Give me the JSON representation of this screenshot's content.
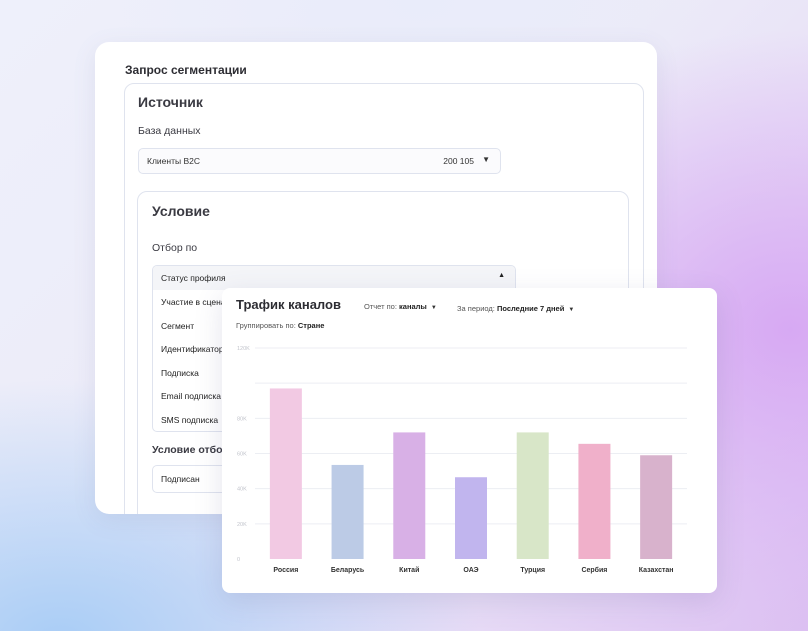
{
  "segmentation": {
    "title": "Запрос сегментации",
    "source_heading": "Источник",
    "database_label": "База данных",
    "database_value": "Клиенты B2C",
    "database_count": "200 105",
    "condition_heading": "Условие",
    "filter_label": "Отбор по",
    "filter_selected": "Статус профиля",
    "filter_options": [
      "Участие в сцена",
      "Сегмент",
      "Идентификатор",
      "Подписка",
      "Email подписка",
      "SMS подписка"
    ],
    "condition2_label": "Условие отбор",
    "condition2_value": "Подписан"
  },
  "chart_panel": {
    "title": "Трафик каналов",
    "report_label": "Отчет по:",
    "report_value": "каналы",
    "period_label": "За период:",
    "period_value": "Последние 7 дней",
    "group_label": "Группировать по:",
    "group_value": "Стране"
  },
  "chart_data": {
    "type": "bar",
    "title": "Трафик каналов",
    "categories": [
      "Россия",
      "Беларусь",
      "Китай",
      "ОАЭ",
      "Турция",
      "Сербия",
      "Казахстан"
    ],
    "values": [
      97000,
      53500,
      72000,
      46500,
      72000,
      65500,
      59000
    ],
    "colors": [
      "#f2c9e3",
      "#bccbe6",
      "#d8b0e6",
      "#c1b5ee",
      "#d8e6c8",
      "#f0b0ca",
      "#d8b2cc"
    ],
    "ylim": [
      0,
      120000
    ],
    "yticks": [
      0,
      20000,
      40000,
      60000,
      80000,
      100000,
      120000
    ],
    "ytick_labels": [
      "0",
      "20K",
      "40K",
      "60K",
      "80K",
      "",
      "120K"
    ],
    "grid": true,
    "legend": "none"
  }
}
